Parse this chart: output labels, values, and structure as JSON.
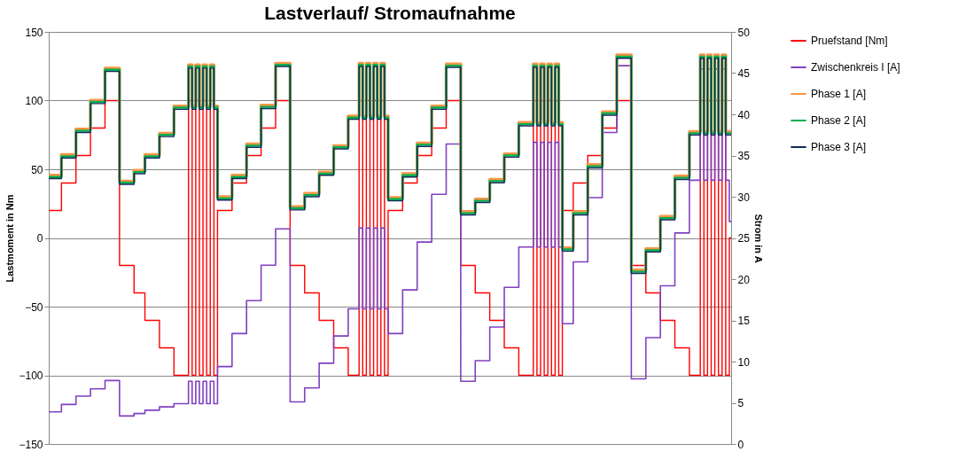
{
  "chart_data": {
    "type": "step",
    "title": "Lastverlauf/ Stromaufnahme",
    "ylabel": "Lastmoment in Nm",
    "y2label": "Strom in A",
    "categories": [
      null,
      null,
      null,
      null,
      null,
      null,
      null,
      null,
      null,
      null,
      null,
      null,
      null,
      null,
      null,
      null,
      null,
      null,
      null,
      null,
      null,
      null,
      null,
      null,
      null,
      null,
      null,
      null,
      null,
      null,
      null,
      null,
      null,
      null,
      null,
      null,
      null,
      null,
      null,
      null,
      null,
      null,
      null,
      null,
      null,
      null,
      null,
      null,
      null,
      null,
      null,
      null,
      null,
      null,
      null,
      null,
      null,
      null,
      null,
      null,
      null,
      null,
      null,
      null,
      null,
      null,
      null,
      null,
      null,
      null,
      null,
      null,
      null,
      null,
      null,
      null,
      null,
      null,
      null,
      null,
      null,
      null,
      null,
      null,
      null,
      null,
      null,
      null,
      null,
      null,
      null,
      null,
      null,
      null,
      null,
      null,
      null,
      null,
      null,
      null,
      null,
      null,
      null,
      null,
      null,
      null,
      null,
      null,
      null,
      null,
      null,
      null,
      null,
      null,
      null,
      null,
      null,
      null,
      null,
      null,
      null,
      null,
      null,
      null,
      null,
      null,
      null,
      null,
      null,
      null,
      null,
      null,
      null,
      null,
      null,
      null,
      null,
      null,
      null,
      null,
      null,
      null,
      null,
      null,
      null,
      null,
      null,
      null,
      null,
      null,
      null,
      null,
      null,
      null,
      null,
      null,
      null,
      null,
      null,
      null,
      null,
      null,
      null,
      null,
      null,
      null,
      null,
      null,
      null,
      null,
      null,
      null,
      null,
      null,
      null,
      null,
      null,
      null,
      null,
      null,
      null,
      null,
      null,
      null,
      null,
      null,
      null,
      null,
      null
    ],
    "series": [
      {
        "name": "Pruefstand [Nm]",
        "color": "#ff0000",
        "values": [
          20,
          20,
          20,
          20,
          40,
          40,
          40,
          40,
          60,
          60,
          60,
          60,
          80,
          80,
          80,
          80,
          100,
          100,
          100,
          100,
          -20,
          -20,
          -20,
          -20,
          -40,
          -40,
          -40,
          -60,
          -60,
          -60,
          -60,
          -80,
          -80,
          -80,
          -80,
          -100,
          -100,
          -100,
          -100,
          100,
          -100,
          100,
          -100,
          100,
          -100,
          100,
          -100,
          20,
          20,
          20,
          20,
          40,
          40,
          40,
          40,
          60,
          60,
          60,
          60,
          80,
          80,
          80,
          80,
          100,
          100,
          100,
          100,
          -20,
          -20,
          -20,
          -20,
          -40,
          -40,
          -40,
          -40,
          -60,
          -60,
          -60,
          -60,
          -80,
          -80,
          -80,
          -80,
          -100,
          -100,
          -100,
          100,
          -100,
          100,
          -100,
          100,
          -100,
          100,
          -100,
          20,
          20,
          20,
          20,
          40,
          40,
          40,
          40,
          60,
          60,
          60,
          60,
          80,
          80,
          80,
          80,
          100,
          100,
          100,
          100,
          -20,
          -20,
          -20,
          -20,
          -40,
          -40,
          -40,
          -40,
          -60,
          -60,
          -60,
          -60,
          -80,
          -80,
          -80,
          -80,
          -100,
          -100,
          -100,
          -100,
          100,
          -100,
          100,
          -100,
          100,
          -100,
          100,
          -100,
          20,
          20,
          20,
          40,
          40,
          40,
          40,
          60,
          60,
          60,
          60,
          80,
          80,
          80,
          80,
          100,
          100,
          100,
          100,
          -20,
          -20,
          -20,
          -20,
          -40,
          -40,
          -40,
          -40,
          -60,
          -60,
          -60,
          -60,
          -80,
          -80,
          -80,
          -80,
          -100,
          -100,
          -100,
          100,
          -100,
          100,
          -100,
          100,
          -100,
          100,
          -100,
          0
        ]
      },
      {
        "name": "Zwischenkreis I [A]",
        "color": "#8040c0",
        "axis": "y2",
        "values": [
          3.9,
          3.9,
          3.9,
          3.9,
          4.8,
          4.8,
          4.8,
          4.8,
          5.8,
          5.8,
          5.8,
          5.8,
          6.7,
          6.7,
          6.7,
          6.7,
          7.7,
          7.7,
          7.7,
          7.7,
          3.4,
          3.4,
          3.4,
          3.4,
          3.7,
          3.7,
          3.7,
          4.1,
          4.1,
          4.1,
          4.1,
          4.5,
          4.5,
          4.5,
          4.5,
          4.9,
          4.9,
          4.9,
          4.9,
          7.6,
          4.9,
          7.6,
          4.9,
          7.6,
          4.9,
          7.6,
          4.9,
          9.4,
          9.4,
          9.4,
          9.4,
          13.4,
          13.4,
          13.4,
          13.4,
          17.4,
          17.4,
          17.4,
          17.4,
          21.7,
          21.7,
          21.7,
          21.7,
          26.1,
          26.1,
          26.1,
          26.1,
          5.1,
          5.1,
          5.1,
          5.1,
          6.8,
          6.8,
          6.8,
          6.8,
          9.8,
          9.8,
          9.8,
          9.8,
          13.1,
          13.1,
          13.1,
          13.1,
          16.4,
          16.4,
          16.4,
          26.2,
          16.4,
          26.2,
          16.4,
          26.2,
          16.4,
          26.2,
          16.4,
          13.4,
          13.4,
          13.4,
          13.4,
          18.7,
          18.7,
          18.7,
          18.7,
          24.5,
          24.5,
          24.5,
          24.5,
          30.3,
          30.3,
          30.3,
          30.3,
          36.4,
          36.4,
          36.4,
          36.4,
          7.6,
          7.6,
          7.6,
          7.6,
          10.1,
          10.1,
          10.1,
          10.1,
          14.2,
          14.2,
          14.2,
          14.2,
          19.0,
          19.0,
          19.0,
          19.0,
          23.9,
          23.9,
          23.9,
          23.9,
          36.6,
          23.9,
          36.6,
          23.9,
          36.6,
          23.9,
          36.6,
          23.9,
          14.6,
          14.6,
          14.6,
          22.1,
          22.1,
          22.1,
          22.1,
          29.9,
          29.9,
          29.9,
          29.9,
          37.8,
          37.8,
          37.8,
          37.8,
          45.9,
          45.9,
          45.9,
          45.9,
          7.9,
          7.9,
          7.9,
          7.9,
          12.9,
          12.9,
          12.9,
          12.9,
          19.2,
          19.2,
          19.2,
          19.2,
          25.6,
          25.6,
          25.6,
          25.6,
          32.0,
          32.0,
          32.0,
          45.5,
          32.0,
          45.5,
          32.0,
          45.5,
          32.0,
          45.5,
          32.0,
          27.0
        ]
      },
      {
        "name": "Phase 1 [A]",
        "color": "#f79646",
        "axis": "y2",
        "values": [
          32.6,
          32.6,
          32.6,
          32.6,
          35.1,
          35.1,
          35.1,
          35.1,
          38.2,
          38.2,
          38.2,
          38.2,
          41.7,
          41.7,
          41.7,
          41.7,
          45.6,
          45.6,
          45.6,
          45.6,
          31.9,
          31.9,
          31.9,
          31.9,
          33.2,
          33.2,
          33.2,
          35.1,
          35.1,
          35.1,
          35.1,
          37.7,
          37.7,
          37.7,
          37.7,
          41.0,
          41.0,
          41.0,
          41.0,
          46.0,
          41.0,
          46.0,
          41.0,
          46.0,
          41.0,
          46.0,
          41.0,
          30.0,
          30.0,
          30.0,
          30.0,
          32.6,
          32.6,
          32.6,
          32.6,
          36.4,
          36.4,
          36.4,
          36.4,
          41.1,
          41.1,
          41.1,
          41.1,
          46.2,
          46.2,
          46.2,
          46.2,
          28.8,
          28.8,
          28.8,
          28.8,
          30.4,
          30.4,
          30.4,
          30.4,
          33.0,
          33.0,
          33.0,
          33.0,
          36.2,
          36.2,
          36.2,
          36.2,
          39.8,
          39.8,
          39.8,
          46.2,
          39.8,
          46.2,
          39.8,
          46.2,
          39.8,
          46.2,
          39.8,
          29.9,
          29.9,
          29.9,
          29.9,
          32.8,
          32.8,
          32.8,
          32.8,
          36.5,
          36.5,
          36.5,
          36.5,
          41.0,
          41.0,
          41.0,
          41.0,
          46.1,
          46.1,
          46.1,
          46.1,
          28.2,
          28.2,
          28.2,
          28.2,
          29.7,
          29.7,
          29.7,
          29.7,
          32.1,
          32.1,
          32.1,
          32.1,
          35.2,
          35.2,
          35.2,
          35.2,
          39.0,
          39.0,
          39.0,
          39.0,
          46.1,
          39.0,
          46.1,
          39.0,
          46.1,
          39.0,
          46.1,
          39.0,
          23.8,
          23.8,
          23.8,
          28.2,
          28.2,
          28.2,
          28.2,
          33.9,
          33.9,
          33.9,
          33.9,
          40.3,
          40.3,
          40.3,
          40.3,
          47.2,
          47.2,
          47.2,
          47.2,
          21.1,
          21.1,
          21.1,
          21.1,
          23.7,
          23.7,
          23.7,
          23.7,
          27.6,
          27.6,
          27.6,
          27.6,
          32.5,
          32.5,
          32.5,
          32.5,
          37.9,
          37.9,
          37.9,
          47.2,
          37.9,
          47.2,
          37.9,
          47.2,
          37.9,
          47.2,
          37.9,
          37.9
        ]
      },
      {
        "name": "Phase 2 [A]",
        "color": "#00b050",
        "axis": "y2",
        "values": [
          32.4,
          32.4,
          32.4,
          32.4,
          34.9,
          34.9,
          34.9,
          34.9,
          38.0,
          38.0,
          38.0,
          38.0,
          41.5,
          41.5,
          41.5,
          41.5,
          45.4,
          45.4,
          45.4,
          45.4,
          31.7,
          31.7,
          31.7,
          31.7,
          33.0,
          33.0,
          33.0,
          34.9,
          34.9,
          34.9,
          34.9,
          37.5,
          37.5,
          37.5,
          37.5,
          40.8,
          40.8,
          40.8,
          40.8,
          45.8,
          40.8,
          45.8,
          40.8,
          45.8,
          40.8,
          45.8,
          40.8,
          29.8,
          29.8,
          29.8,
          29.8,
          32.4,
          32.4,
          32.4,
          32.4,
          36.2,
          36.2,
          36.2,
          36.2,
          40.9,
          40.9,
          40.9,
          40.9,
          46.0,
          46.0,
          46.0,
          46.0,
          28.6,
          28.6,
          28.6,
          28.6,
          30.2,
          30.2,
          30.2,
          30.2,
          32.8,
          32.8,
          32.8,
          32.8,
          36.0,
          36.0,
          36.0,
          36.0,
          39.6,
          39.6,
          39.6,
          46.0,
          39.6,
          46.0,
          39.6,
          46.0,
          39.6,
          46.0,
          39.6,
          29.7,
          29.7,
          29.7,
          29.7,
          32.6,
          32.6,
          32.6,
          32.6,
          36.3,
          36.3,
          36.3,
          36.3,
          40.8,
          40.8,
          40.8,
          40.8,
          45.9,
          45.9,
          45.9,
          45.9,
          28.0,
          28.0,
          28.0,
          28.0,
          29.5,
          29.5,
          29.5,
          29.5,
          31.9,
          31.9,
          31.9,
          31.9,
          35.0,
          35.0,
          35.0,
          35.0,
          38.8,
          38.8,
          38.8,
          38.8,
          45.9,
          38.8,
          45.9,
          38.8,
          45.9,
          38.8,
          45.9,
          38.8,
          23.6,
          23.6,
          23.6,
          28.0,
          28.0,
          28.0,
          28.0,
          33.7,
          33.7,
          33.7,
          33.7,
          40.1,
          40.1,
          40.1,
          40.1,
          47.0,
          47.0,
          47.0,
          47.0,
          20.9,
          20.9,
          20.9,
          20.9,
          23.5,
          23.5,
          23.5,
          23.5,
          27.4,
          27.4,
          27.4,
          27.4,
          32.3,
          32.3,
          32.3,
          32.3,
          37.7,
          37.7,
          37.7,
          47.0,
          37.7,
          47.0,
          37.7,
          47.0,
          37.7,
          47.0,
          37.7,
          37.7
        ]
      },
      {
        "name": "Phase 3 [A]",
        "color": "#12295a",
        "axis": "y2",
        "values": [
          32.2,
          32.2,
          32.2,
          32.2,
          34.7,
          34.7,
          34.7,
          34.7,
          37.8,
          37.8,
          37.8,
          37.8,
          41.3,
          41.3,
          41.3,
          41.3,
          45.2,
          45.2,
          45.2,
          45.2,
          31.5,
          31.5,
          31.5,
          31.5,
          32.8,
          32.8,
          32.8,
          34.7,
          34.7,
          34.7,
          34.7,
          37.3,
          37.3,
          37.3,
          37.3,
          40.6,
          40.6,
          40.6,
          40.6,
          45.6,
          40.6,
          45.6,
          40.6,
          45.6,
          40.6,
          45.6,
          40.6,
          29.6,
          29.6,
          29.6,
          29.6,
          32.2,
          32.2,
          32.2,
          32.2,
          36.0,
          36.0,
          36.0,
          36.0,
          40.7,
          40.7,
          40.7,
          40.7,
          45.8,
          45.8,
          45.8,
          45.8,
          28.4,
          28.4,
          28.4,
          28.4,
          30.0,
          30.0,
          30.0,
          30.0,
          32.6,
          32.6,
          32.6,
          32.6,
          35.8,
          35.8,
          35.8,
          35.8,
          39.4,
          39.4,
          39.4,
          45.8,
          39.4,
          45.8,
          39.4,
          45.8,
          39.4,
          45.8,
          39.4,
          29.5,
          29.5,
          29.5,
          29.5,
          32.4,
          32.4,
          32.4,
          32.4,
          36.1,
          36.1,
          36.1,
          36.1,
          40.6,
          40.6,
          40.6,
          40.6,
          45.7,
          45.7,
          45.7,
          45.7,
          27.8,
          27.8,
          27.8,
          27.8,
          29.3,
          29.3,
          29.3,
          29.3,
          31.7,
          31.7,
          31.7,
          31.7,
          34.8,
          34.8,
          34.8,
          34.8,
          38.6,
          38.6,
          38.6,
          38.6,
          45.7,
          38.6,
          45.7,
          38.6,
          45.7,
          38.6,
          45.7,
          38.6,
          23.4,
          23.4,
          23.4,
          27.8,
          27.8,
          27.8,
          27.8,
          33.5,
          33.5,
          33.5,
          33.5,
          39.9,
          39.9,
          39.9,
          39.9,
          46.8,
          46.8,
          46.8,
          46.8,
          20.7,
          20.7,
          20.7,
          20.7,
          23.3,
          23.3,
          23.3,
          23.3,
          27.2,
          27.2,
          27.2,
          27.2,
          32.1,
          32.1,
          32.1,
          32.1,
          37.5,
          37.5,
          37.5,
          46.8,
          37.5,
          46.8,
          37.5,
          46.8,
          37.5,
          46.8,
          37.5,
          37.5
        ]
      }
    ],
    "ylim": [
      -150,
      150
    ],
    "yticks": [
      -150,
      -100,
      -50,
      0,
      50,
      100,
      150
    ],
    "y2lim": [
      0,
      50
    ],
    "y2ticks": [
      0,
      5,
      10,
      15,
      20,
      25,
      30,
      35,
      40,
      45,
      50
    ],
    "grid": "y",
    "legend": "right"
  }
}
